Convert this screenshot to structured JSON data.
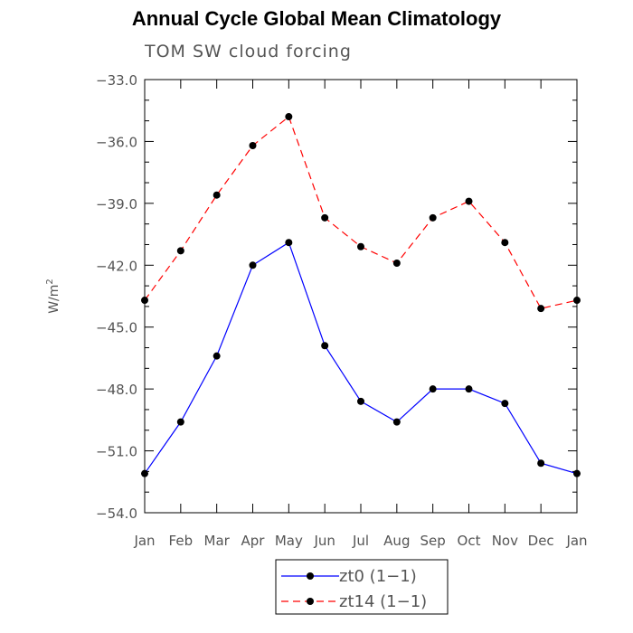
{
  "chart_data": {
    "type": "line",
    "title": "Annual Cycle Global Mean Climatology",
    "subtitle": "TOM SW cloud forcing",
    "xlabel": "",
    "ylabel": "W/m",
    "ylabel_sup": "2",
    "categories": [
      "Jan",
      "Feb",
      "Mar",
      "Apr",
      "May",
      "Jun",
      "Jul",
      "Aug",
      "Sep",
      "Oct",
      "Nov",
      "Dec",
      "Jan"
    ],
    "ylim": [
      -54.0,
      -33.0
    ],
    "yticks": [
      -33.0,
      -36.0,
      -39.0,
      -42.0,
      -45.0,
      -48.0,
      -51.0,
      -54.0
    ],
    "ytick_labels": [
      "−33.0",
      "−36.0",
      "−39.0",
      "−42.0",
      "−45.0",
      "−48.0",
      "−51.0",
      "−54.0"
    ],
    "grid": false,
    "legend_position": "bottom",
    "series": [
      {
        "name": "zt0 (1−1)",
        "color": "#0000ff",
        "dash": "solid",
        "values": [
          -52.1,
          -49.6,
          -46.4,
          -42.0,
          -40.9,
          -45.9,
          -48.6,
          -49.6,
          -48.0,
          -48.0,
          -48.7,
          -51.6,
          -52.1
        ]
      },
      {
        "name": "zt14 (1−1)",
        "color": "#ff0000",
        "dash": "dashed",
        "values": [
          -43.7,
          -41.3,
          -38.6,
          -36.2,
          -34.8,
          -39.7,
          -41.1,
          -41.9,
          -39.7,
          -38.9,
          -40.9,
          -44.1,
          -43.7
        ]
      }
    ]
  }
}
